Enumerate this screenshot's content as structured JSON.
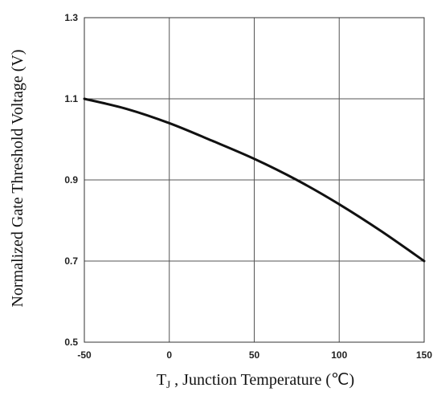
{
  "chart_data": {
    "type": "line",
    "title": "",
    "xlabel": {
      "prefix": "T",
      "subscript": "J",
      "suffix": " , Junction Temperature (℃)"
    },
    "ylabel": "Normalized Gate Threshold Voltage (V)",
    "xlim": [
      -50,
      150
    ],
    "ylim": [
      0.5,
      1.3
    ],
    "xticks": [
      -50,
      0,
      50,
      100,
      150
    ],
    "xtick_labels": [
      "-50",
      "0",
      "50",
      "100",
      "150"
    ],
    "yticks": [
      0.5,
      0.7,
      0.9,
      1.1,
      1.3
    ],
    "ytick_labels": [
      "0.5",
      "0.7",
      "0.9",
      "1.1",
      "1.3"
    ],
    "grid": true,
    "legend": "none",
    "series": [
      {
        "color": "#111111",
        "x": [
          -50,
          -25,
          0,
          25,
          50,
          75,
          100,
          125,
          150
        ],
        "y": [
          1.1,
          1.075,
          1.04,
          0.997,
          0.952,
          0.9,
          0.84,
          0.773,
          0.7
        ]
      }
    ]
  }
}
